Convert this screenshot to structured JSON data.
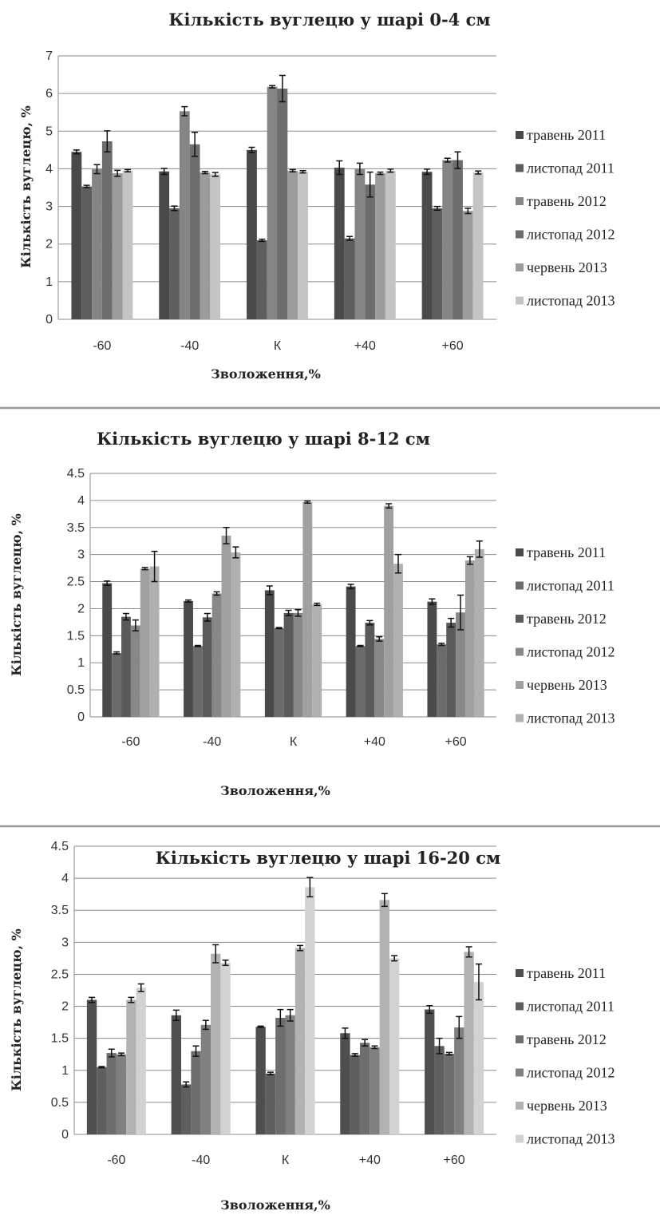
{
  "chart_data": [
    {
      "type": "bar",
      "title": "Кількість вуглецю у шарі 0-4 см",
      "xlabel": "Зволоження,%",
      "ylabel": "Кількість вуглецю, %",
      "categories": [
        "-60",
        "-40",
        "К",
        "+40",
        "+60"
      ],
      "ylim": [
        0,
        7
      ],
      "yticks": [
        "0",
        "1",
        "2",
        "3",
        "4",
        "5",
        "6",
        "7"
      ],
      "ytick_values": [
        0,
        1,
        2,
        3,
        4,
        5,
        6,
        7
      ],
      "grid": true,
      "legend_position": "right",
      "series": [
        {
          "name": "травень 2011",
          "color": "#4a4a4a",
          "values": [
            4.45,
            3.93,
            4.5,
            4.03,
            3.92
          ],
          "errors": [
            0.05,
            0.08,
            0.07,
            0.18,
            0.07
          ]
        },
        {
          "name": "листопад 2011",
          "color": "#5e5e5e",
          "values": [
            3.53,
            2.95,
            2.1,
            2.15,
            2.95
          ],
          "errors": [
            0.03,
            0.06,
            0.03,
            0.05,
            0.05
          ]
        },
        {
          "name": "травень 2012",
          "color": "#858585",
          "values": [
            3.99,
            5.53,
            6.18,
            4.0,
            4.23
          ],
          "errors": [
            0.12,
            0.12,
            0.03,
            0.15,
            0.05
          ]
        },
        {
          "name": "листопад 2012",
          "color": "#6d6d6d",
          "values": [
            4.73,
            4.65,
            6.13,
            3.58,
            4.23
          ],
          "errors": [
            0.28,
            0.32,
            0.35,
            0.33,
            0.22
          ]
        },
        {
          "name": "червень 2013",
          "color": "#9c9c9c",
          "values": [
            3.88,
            3.9,
            3.95,
            3.88,
            2.88
          ],
          "errors": [
            0.08,
            0.03,
            0.03,
            0.03,
            0.07
          ]
        },
        {
          "name": "листопад 2013",
          "color": "#c4c4c4",
          "values": [
            3.95,
            3.85,
            3.92,
            3.95,
            3.9
          ],
          "errors": [
            0.03,
            0.05,
            0.03,
            0.04,
            0.04
          ]
        }
      ]
    },
    {
      "type": "bar",
      "title": "Кількість вуглецю у шарі 8-12 см",
      "xlabel": "Зволоження,%",
      "ylabel": "Кількість вуглецю, %",
      "categories": [
        "-60",
        "-40",
        "К",
        "+40",
        "+60"
      ],
      "ylim": [
        0,
        4.5
      ],
      "yticks": [
        "0",
        "0.5",
        "1",
        "1.5",
        "2",
        "2.5",
        "3",
        "3.5",
        "4",
        "4.5"
      ],
      "ytick_values": [
        0,
        0.5,
        1,
        1.5,
        2,
        2.5,
        3,
        3.5,
        4,
        4.5
      ],
      "grid": true,
      "legend_position": "right",
      "series": [
        {
          "name": "травень 2011",
          "color": "#4a4a4a",
          "values": [
            2.47,
            2.14,
            2.34,
            2.41,
            2.13
          ],
          "errors": [
            0.04,
            0.02,
            0.08,
            0.04,
            0.05
          ]
        },
        {
          "name": "листопад 2011",
          "color": "#6b6b6b",
          "values": [
            1.18,
            1.31,
            1.64,
            1.31,
            1.34
          ],
          "errors": [
            0.02,
            0.01,
            0.01,
            0.01,
            0.02
          ]
        },
        {
          "name": "травень 2012",
          "color": "#5a5a5a",
          "values": [
            1.85,
            1.84,
            1.92,
            1.74,
            1.74
          ],
          "errors": [
            0.06,
            0.07,
            0.05,
            0.04,
            0.08
          ]
        },
        {
          "name": "листопад 2012",
          "color": "#888888",
          "values": [
            1.69,
            2.28,
            1.92,
            1.44,
            1.93
          ],
          "errors": [
            0.1,
            0.03,
            0.06,
            0.04,
            0.32
          ]
        },
        {
          "name": "червень 2013",
          "color": "#a0a0a0",
          "values": [
            2.74,
            3.35,
            3.97,
            3.9,
            2.89
          ],
          "errors": [
            0.02,
            0.15,
            0.02,
            0.04,
            0.07
          ]
        },
        {
          "name": "листопад 2013",
          "color": "#b0b0b0",
          "values": [
            2.78,
            3.04,
            2.08,
            2.83,
            3.1
          ],
          "errors": [
            0.28,
            0.1,
            0.02,
            0.17,
            0.15
          ]
        }
      ]
    },
    {
      "type": "bar",
      "title": "Кількість вуглецю у шарі 16-20 см",
      "xlabel": "Зволоження,%",
      "ylabel": "Кількість вуглецю, %",
      "categories": [
        "-60",
        "-40",
        "К",
        "+40",
        "+60"
      ],
      "ylim": [
        0,
        4.5
      ],
      "yticks": [
        "0",
        "0.5",
        "1",
        "1.5",
        "2",
        "2.5",
        "3",
        "3.5",
        "4",
        "4.5"
      ],
      "ytick_values": [
        0,
        0.5,
        1,
        1.5,
        2,
        2.5,
        3,
        3.5,
        4,
        4.5
      ],
      "grid": true,
      "legend_position": "right",
      "series": [
        {
          "name": "травень 2011",
          "color": "#4f4f4f",
          "values": [
            2.1,
            1.86,
            1.68,
            1.58,
            1.95
          ],
          "errors": [
            0.04,
            0.08,
            0.01,
            0.08,
            0.06
          ]
        },
        {
          "name": "листопад 2011",
          "color": "#5f5f5f",
          "values": [
            1.05,
            0.78,
            0.95,
            1.24,
            1.38
          ],
          "errors": [
            0.01,
            0.04,
            0.02,
            0.02,
            0.12
          ]
        },
        {
          "name": "травень 2012",
          "color": "#6e6e6e",
          "values": [
            1.27,
            1.3,
            1.82,
            1.43,
            1.26
          ],
          "errors": [
            0.06,
            0.08,
            0.13,
            0.05,
            0.02
          ]
        },
        {
          "name": "листопад 2012",
          "color": "#808080",
          "values": [
            1.25,
            1.71,
            1.86,
            1.36,
            1.67
          ],
          "errors": [
            0.02,
            0.07,
            0.09,
            0.02,
            0.17
          ]
        },
        {
          "name": "червень 2013",
          "color": "#b2b2b2",
          "values": [
            2.1,
            2.82,
            2.91,
            3.66,
            2.85
          ],
          "errors": [
            0.04,
            0.14,
            0.04,
            0.1,
            0.08
          ]
        },
        {
          "name": "листопад 2013",
          "color": "#d2d2d2",
          "values": [
            2.29,
            2.68,
            3.86,
            2.75,
            2.38
          ],
          "errors": [
            0.06,
            0.04,
            0.15,
            0.04,
            0.28
          ]
        }
      ]
    }
  ]
}
